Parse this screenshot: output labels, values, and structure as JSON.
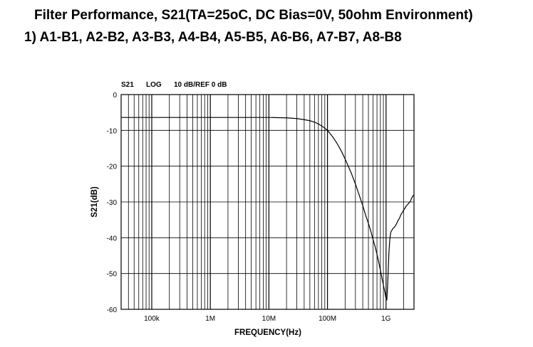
{
  "header": {
    "title": "Filter Performance, S21(TA=25oC, DC Bias=0V, 50ohm Environment)",
    "subtitle": "1) A1-B1, A2-B2, A3-B3, A4-B4, A5-B5, A6-B6, A7-B7, A8-B8"
  },
  "chart_data": {
    "type": "line",
    "header_labels": [
      "S21",
      "LOG",
      "10 dB/REF 0 dB"
    ],
    "xlabel": "FREQUENCY(Hz)",
    "ylabel": "S21(dB)",
    "x_scale": "log",
    "xlim": [
      30000,
      3000000000
    ],
    "ylim": [
      -60,
      0
    ],
    "x_ticks": [
      {
        "value": 100000,
        "label": "100k"
      },
      {
        "value": 1000000,
        "label": "1M"
      },
      {
        "value": 10000000,
        "label": "10M"
      },
      {
        "value": 100000000,
        "label": "100M"
      },
      {
        "value": 1000000000,
        "label": "1G"
      }
    ],
    "y_ticks": [
      0,
      -10,
      -20,
      -30,
      -40,
      -50,
      -60
    ],
    "grid": true,
    "series": [
      {
        "points": [
          [
            30000,
            -6.4
          ],
          [
            100000,
            -6.4
          ],
          [
            1000000,
            -6.4
          ],
          [
            10000000,
            -6.4
          ],
          [
            20000000,
            -6.5
          ],
          [
            30000000,
            -6.7
          ],
          [
            40000000,
            -7.0
          ],
          [
            50000000,
            -7.3
          ],
          [
            60000000,
            -7.7
          ],
          [
            70000000,
            -8.2
          ],
          [
            80000000,
            -8.8
          ],
          [
            90000000,
            -9.4
          ],
          [
            100000000,
            -10.0
          ],
          [
            120000000,
            -11.6
          ],
          [
            140000000,
            -13.2
          ],
          [
            160000000,
            -14.8
          ],
          [
            180000000,
            -16.4
          ],
          [
            200000000,
            -18.0
          ],
          [
            250000000,
            -21.6
          ],
          [
            300000000,
            -25.0
          ],
          [
            350000000,
            -28.2
          ],
          [
            400000000,
            -31.0
          ],
          [
            450000000,
            -33.8
          ],
          [
            500000000,
            -36.0
          ],
          [
            550000000,
            -38.2
          ],
          [
            600000000,
            -40.5
          ],
          [
            650000000,
            -42.5
          ],
          [
            700000000,
            -44.6
          ],
          [
            750000000,
            -46.8
          ],
          [
            800000000,
            -49.0
          ],
          [
            850000000,
            -51.2
          ],
          [
            900000000,
            -53.2
          ],
          [
            950000000,
            -55.0
          ],
          [
            1000000000,
            -57.0
          ],
          [
            1030000000,
            -57.5
          ],
          [
            1060000000,
            -54.0
          ],
          [
            1090000000,
            -49.0
          ],
          [
            1120000000,
            -44.0
          ],
          [
            1160000000,
            -40.5
          ],
          [
            1200000000,
            -38.5
          ],
          [
            1300000000,
            -37.5
          ],
          [
            1400000000,
            -37.0
          ],
          [
            1500000000,
            -36.2
          ],
          [
            1600000000,
            -35.2
          ],
          [
            1700000000,
            -34.5
          ],
          [
            1800000000,
            -33.5
          ],
          [
            2000000000,
            -32.3
          ],
          [
            2200000000,
            -31.2
          ],
          [
            2400000000,
            -30.5
          ],
          [
            2600000000,
            -29.8
          ],
          [
            2800000000,
            -28.6
          ],
          [
            3000000000,
            -28.0
          ]
        ]
      }
    ]
  }
}
